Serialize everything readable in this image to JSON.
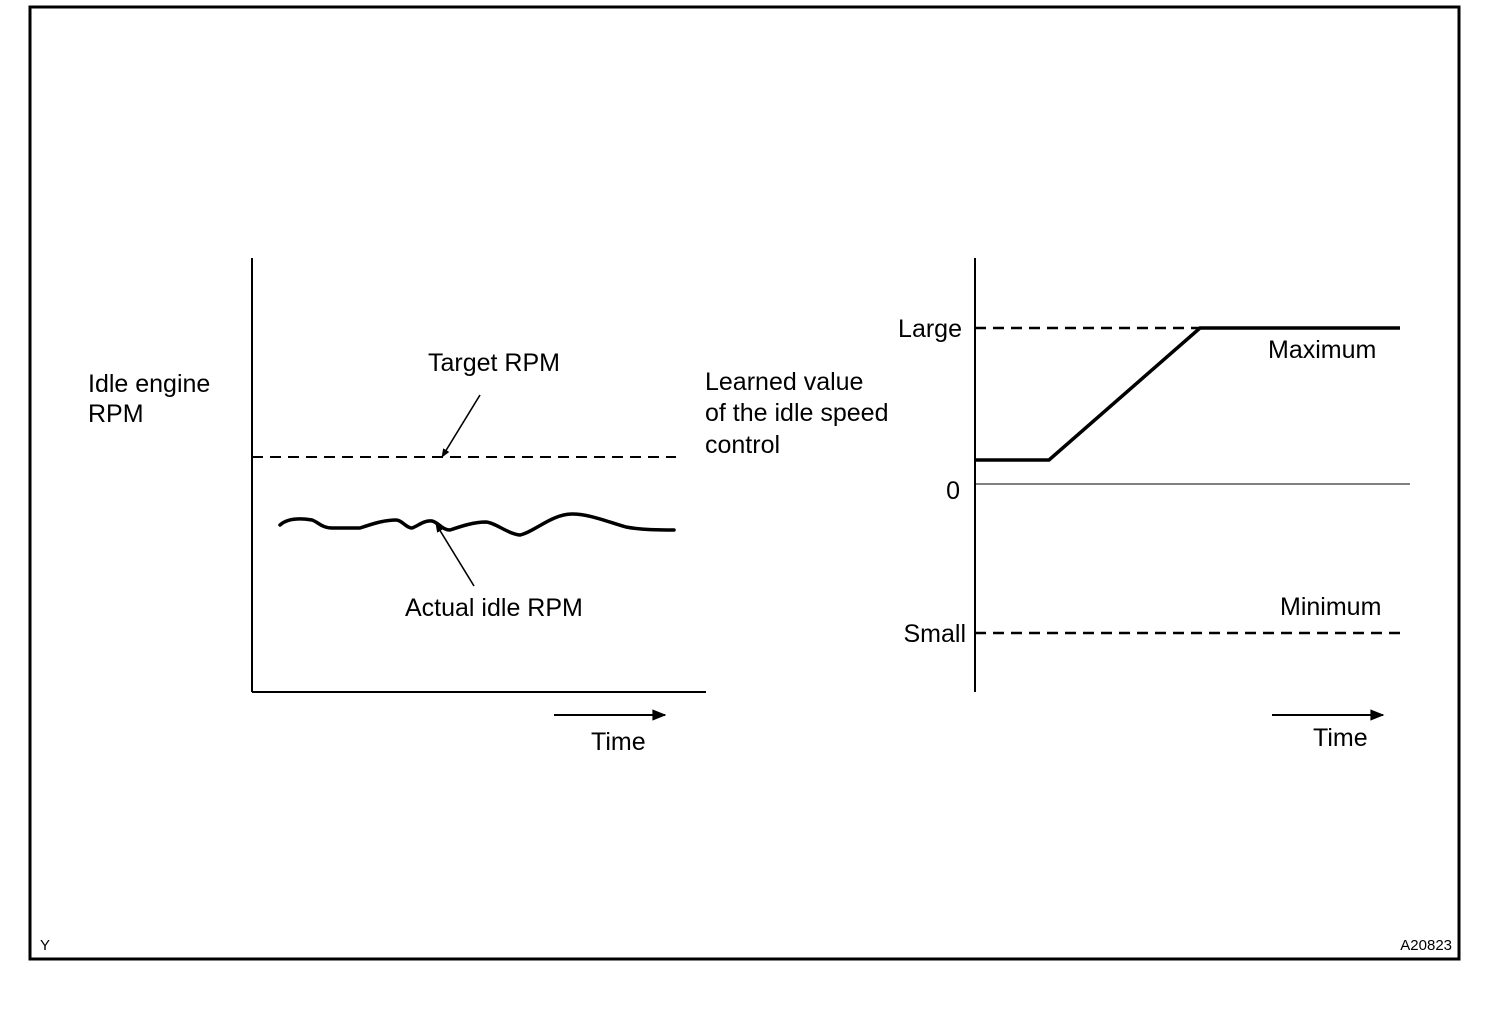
{
  "left_panel": {
    "y_label_line1": "Idle engine",
    "y_label_line2": "RPM",
    "target_label": "Target RPM",
    "actual_label": "Actual idle RPM",
    "time_label": "Time"
  },
  "right_panel": {
    "y_label_line1": "Learned value",
    "y_label_line2": "of the idle speed",
    "y_label_line3": "control",
    "tick_large": "Large",
    "tick_zero": "0",
    "tick_small": "Small",
    "maximum_label": "Maximum",
    "minimum_label": "Minimum",
    "time_label": "Time"
  },
  "corner_left": "Y",
  "corner_right": "A20823"
}
